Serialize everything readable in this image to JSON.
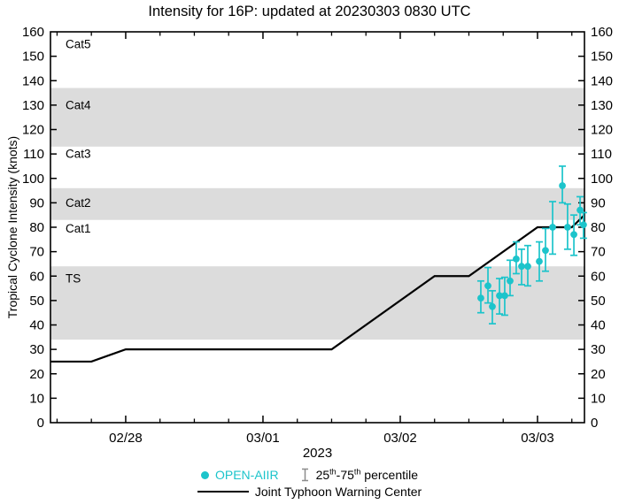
{
  "chart_data": {
    "type": "line",
    "title": "Intensity for 16P: updated at 20230303 0830 UTC",
    "ylabel": "Tropical Cyclone Intensity (knots)",
    "year_label": "2023",
    "ylim": [
      0,
      160
    ],
    "y_tick_step": 10,
    "grid": false,
    "legend_position": "bottom",
    "x_domain_days_from_0228": [
      -0.548,
      3.342
    ],
    "x_minor_tick_step_days": 0.25,
    "x_ticks": [
      {
        "t": 0,
        "label": "02/28"
      },
      {
        "t": 1,
        "label": "03/01"
      },
      {
        "t": 2,
        "label": "03/02"
      },
      {
        "t": 3,
        "label": "03/03"
      }
    ],
    "category_bands": [
      {
        "name": "TS",
        "from": 34,
        "to": 64
      },
      {
        "name": "Cat2",
        "from": 83,
        "to": 96
      },
      {
        "name": "Cat4",
        "from": 113,
        "to": 137
      }
    ],
    "category_labels": [
      {
        "label": "Cat5",
        "v": 155
      },
      {
        "label": "Cat4",
        "v": 130
      },
      {
        "label": "Cat3",
        "v": 110
      },
      {
        "label": "Cat2",
        "v": 90
      },
      {
        "label": "Cat1",
        "v": 79.5
      },
      {
        "label": "TS",
        "v": 59
      }
    ],
    "series": [
      {
        "name": "Joint Typhoon Warning Center",
        "type": "line",
        "color": "#000000",
        "points": [
          {
            "t": -0.548,
            "v": 25
          },
          {
            "t": -0.25,
            "v": 25
          },
          {
            "t": 0,
            "v": 30
          },
          {
            "t": 1.5,
            "v": 30
          },
          {
            "t": 2.25,
            "v": 60
          },
          {
            "t": 2.5,
            "v": 60
          },
          {
            "t": 3.0,
            "v": 80
          },
          {
            "t": 3.25,
            "v": 80
          },
          {
            "t": 3.342,
            "v": 85
          }
        ]
      },
      {
        "name": "OPEN-AIIR",
        "type": "scatter_with_percentile_bars",
        "color": "#1CC4CB",
        "points": [
          {
            "t": 2.587,
            "v": 51,
            "p25": 45,
            "p75": 58
          },
          {
            "t": 2.639,
            "v": 56,
            "p25": 49,
            "p75": 63.5
          },
          {
            "t": 2.671,
            "v": 47.5,
            "p25": 40.5,
            "p75": 54
          },
          {
            "t": 2.723,
            "v": 52,
            "p25": 44.5,
            "p75": 59
          },
          {
            "t": 2.761,
            "v": 52,
            "p25": 44,
            "p75": 59.5
          },
          {
            "t": 2.8,
            "v": 58,
            "p25": 52,
            "p75": 66.5
          },
          {
            "t": 2.845,
            "v": 67,
            "p25": 61,
            "p75": 74
          },
          {
            "t": 2.884,
            "v": 64,
            "p25": 56.5,
            "p75": 71
          },
          {
            "t": 2.929,
            "v": 64,
            "p25": 56,
            "p75": 72.5
          },
          {
            "t": 3.013,
            "v": 66,
            "p25": 58,
            "p75": 74
          },
          {
            "t": 3.058,
            "v": 70.5,
            "p25": 62,
            "p75": 79.5
          },
          {
            "t": 3.11,
            "v": 80,
            "p25": 69,
            "p75": 90.5
          },
          {
            "t": 3.181,
            "v": 97,
            "p25": 90,
            "p75": 105
          },
          {
            "t": 3.219,
            "v": 80,
            "p25": 71,
            "p75": 89.5
          },
          {
            "t": 3.265,
            "v": 77,
            "p25": 68.5,
            "p75": 85
          },
          {
            "t": 3.31,
            "v": 87,
            "p25": 81,
            "p75": 92.5
          },
          {
            "t": 3.335,
            "v": 81,
            "p25": 75.5,
            "p75": 86
          }
        ]
      }
    ]
  },
  "legend": {
    "open_aiir": "OPEN-AIIR",
    "percentile": {
      "a": "25",
      "a_sup": "th",
      "b": "-75",
      "b_sup": "th",
      "c": " percentile"
    },
    "jtwc": "Joint Typhoon Warning Center"
  },
  "colors": {
    "accent": "#1CC4CB",
    "band": "#DCDCDC",
    "jtwc_line": "#000000",
    "ibeam_gray": "#8C8C8C",
    "text": "#000000"
  }
}
